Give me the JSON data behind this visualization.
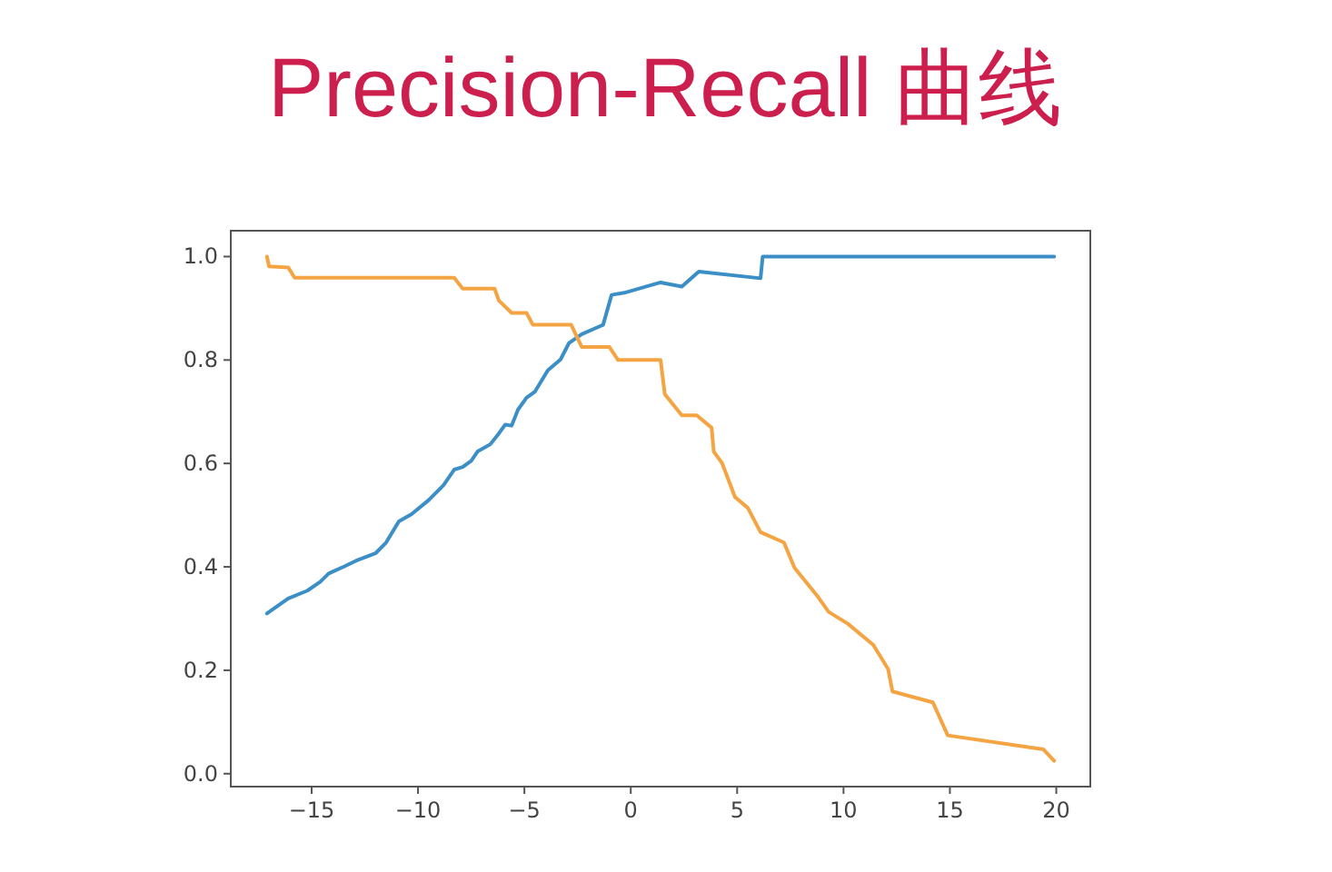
{
  "chart_data": {
    "type": "line",
    "title": "Precision-Recall 曲线",
    "xlim": [
      -18.8,
      21.6
    ],
    "ylim": [
      -0.025,
      1.05
    ],
    "xticks": [
      -15,
      -10,
      -5,
      0,
      5,
      10,
      15,
      20
    ],
    "yticks": [
      {
        "value": 0,
        "label": "0.0"
      },
      0.2,
      0.4,
      0.6,
      0.8,
      {
        "value": 1,
        "label": "1.0"
      }
    ],
    "series": [
      {
        "color": "#3b8fc6",
        "x": [
          -17.1,
          -16.1,
          -15.2,
          -14.6,
          -14.2,
          -13.5,
          -12.9,
          -12.0,
          -11.5,
          -10.9,
          -10.3,
          -9.5,
          -8.8,
          -8.3,
          -7.9,
          -7.5,
          -7.2,
          -6.6,
          -6.2,
          -5.9,
          -5.6,
          -5.3,
          -4.9,
          -4.5,
          -3.9,
          -3.3,
          -2.9,
          -2.3,
          -1.8,
          -1.3,
          -0.9,
          -0.3,
          1.4,
          2.4,
          3.2,
          6.1,
          6.2,
          19.9
        ],
        "values": [
          0.31,
          0.339,
          0.354,
          0.371,
          0.387,
          0.4,
          0.412,
          0.426,
          0.447,
          0.488,
          0.502,
          0.529,
          0.558,
          0.588,
          0.593,
          0.605,
          0.623,
          0.637,
          0.658,
          0.675,
          0.673,
          0.704,
          0.727,
          0.739,
          0.78,
          0.801,
          0.833,
          0.85,
          0.859,
          0.868,
          0.926,
          0.93,
          0.95,
          0.942,
          0.971,
          0.958,
          1.0,
          1.0
        ]
      },
      {
        "color": "#f4a442",
        "x": [
          -17.1,
          -17.0,
          -16.1,
          -15.8,
          -8.3,
          -7.9,
          -6.4,
          -6.2,
          -5.6,
          -4.9,
          -4.6,
          -2.8,
          -2.3,
          -1.0,
          -0.6,
          1.4,
          1.6,
          2.4,
          3.1,
          3.8,
          3.9,
          4.3,
          4.9,
          5.5,
          6.1,
          7.2,
          7.7,
          8.8,
          9.3,
          10.2,
          11.4,
          12.1,
          12.3,
          14.2,
          14.9,
          19.4,
          19.9
        ],
        "values": [
          1.0,
          0.981,
          0.979,
          0.959,
          0.959,
          0.938,
          0.938,
          0.915,
          0.891,
          0.891,
          0.868,
          0.868,
          0.825,
          0.825,
          0.8,
          0.8,
          0.734,
          0.693,
          0.693,
          0.669,
          0.623,
          0.6,
          0.535,
          0.514,
          0.467,
          0.447,
          0.398,
          0.342,
          0.313,
          0.29,
          0.249,
          0.202,
          0.159,
          0.138,
          0.074,
          0.047,
          0.025
        ]
      }
    ]
  }
}
